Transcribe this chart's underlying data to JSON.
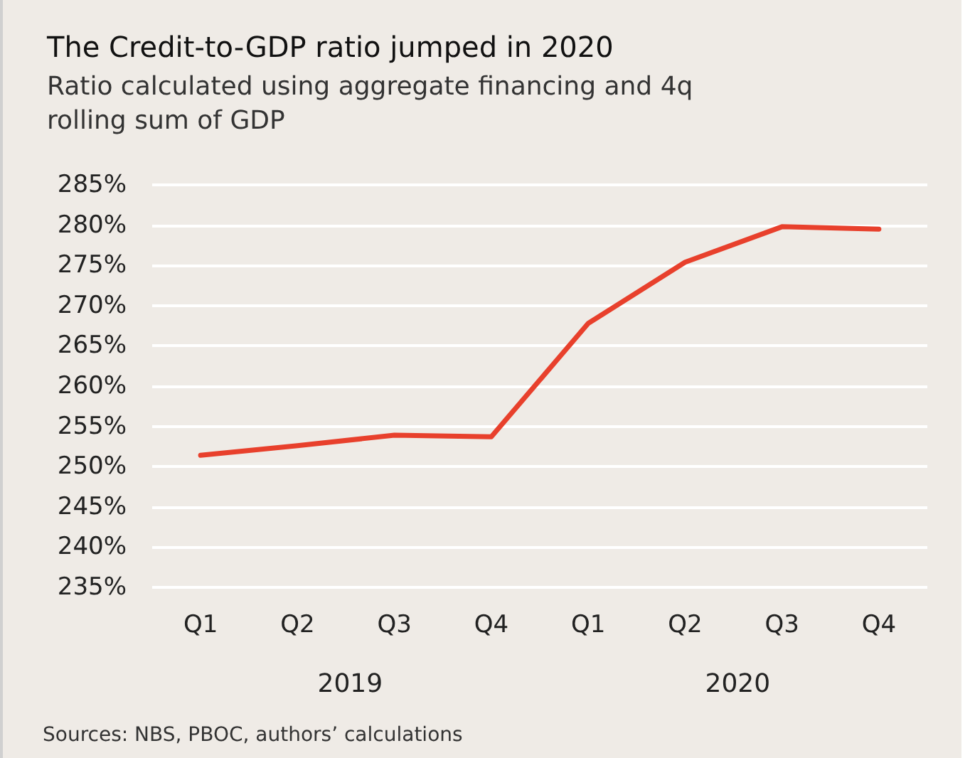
{
  "chart_data": {
    "type": "line",
    "title": "The Credit-to-GDP ratio jumped in 2020",
    "subtitle": "Ratio calculated using aggregate financing and 4q\nrolling sum of GDP",
    "categories": [
      "Q1",
      "Q2",
      "Q3",
      "Q4",
      "Q1",
      "Q2",
      "Q3",
      "Q4"
    ],
    "series": [
      {
        "color": "#e8402c",
        "values": [
          251.4,
          252.6,
          253.9,
          253.7,
          267.8,
          275.4,
          279.8,
          279.5
        ]
      }
    ],
    "ylim": [
      235,
      285
    ],
    "yticks": [
      {
        "value": 235,
        "label": "235%"
      },
      {
        "value": 240,
        "label": "240%"
      },
      {
        "value": 245,
        "label": "245%"
      },
      {
        "value": 250,
        "label": "250%"
      },
      {
        "value": 255,
        "label": "255%"
      },
      {
        "value": 260,
        "label": "260%"
      },
      {
        "value": 265,
        "label": "265%"
      },
      {
        "value": 270,
        "label": "270%"
      },
      {
        "value": 275,
        "label": "275%"
      },
      {
        "value": 280,
        "label": "280%"
      },
      {
        "value": 285,
        "label": "285%"
      }
    ],
    "grid": "y",
    "marker": "none",
    "line_style": "solid",
    "annotations": [
      "2019",
      "2020",
      "Sources: NBS, PBOC, authors’ calculations"
    ]
  }
}
